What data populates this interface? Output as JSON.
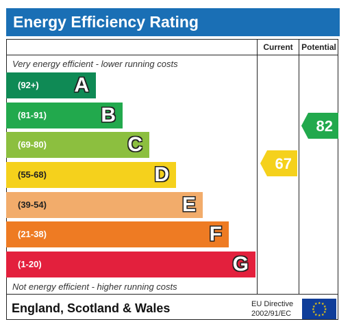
{
  "header": {
    "title": "Energy Efficiency Rating"
  },
  "columns": {
    "current": "Current",
    "potential": "Potential"
  },
  "notes": {
    "top": "Very energy efficient - lower running costs",
    "bottom": "Not energy efficient - higher running costs"
  },
  "bands": [
    {
      "range": "(92+)",
      "letter": "A",
      "color": "#0f8a55"
    },
    {
      "range": "(81-91)",
      "letter": "B",
      "color": "#22a94d"
    },
    {
      "range": "(69-80)",
      "letter": "C",
      "color": "#8cbf3f"
    },
    {
      "range": "(55-68)",
      "letter": "D",
      "color": "#f5d11c"
    },
    {
      "range": "(39-54)",
      "letter": "E",
      "color": "#f2ac6b"
    },
    {
      "range": "(21-38)",
      "letter": "F",
      "color": "#ee7b23"
    },
    {
      "range": "(1-20)",
      "letter": "G",
      "color": "#e3203d"
    }
  ],
  "ratings": {
    "current": {
      "value": "67",
      "color": "#f5d11c"
    },
    "potential": {
      "value": "82",
      "color": "#22a94d"
    }
  },
  "footer": {
    "country": "England, Scotland & Wales",
    "directive_line1": "EU Directive",
    "directive_line2": "2002/91/EC"
  }
}
